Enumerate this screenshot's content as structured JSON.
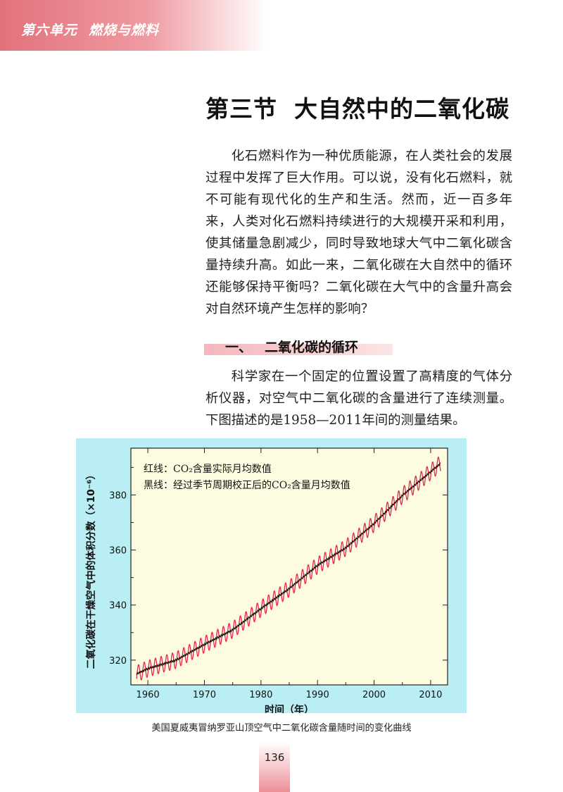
{
  "header": {
    "unit": "第六单元",
    "topic": "燃烧与燃料"
  },
  "section": {
    "number": "第三节",
    "title": "大自然中的二氧化碳"
  },
  "paragraphs": {
    "p1": "化石燃料作为一种优质能源，在人类社会的发展过程中发挥了巨大作用。可以说，没有化石燃料，就不可能有现代化的生产和生活。然而，近一百多年来，人类对化石燃料持续进行的大规模开采和利用，使其储量急剧减少，同时导致地球大气中二氧化碳含量持续升高。如此一来，二氧化碳在大自然中的循环还能够保持平衡吗？二氧化碳在大气中的含量升高会对自然环境产生怎样的影响？",
    "p2": "科学家在一个固定的位置设置了高精度的气体分析仪器，对空气中二氧化碳的含量进行了连续测量。下图描述的是1958—2011年间的测量结果。"
  },
  "subsection": {
    "number": "一、",
    "title": "二氧化碳的循环"
  },
  "chart_data": {
    "type": "line",
    "ylabel": "二氧化碳在干燥空气中的体积分数（×10⁻⁶）",
    "xlabel": "时间（年）",
    "xlim": [
      1957,
      2013
    ],
    "ylim": [
      311,
      397
    ],
    "xticks": [
      1960,
      1970,
      1980,
      1990,
      2000,
      2010
    ],
    "yticks": [
      320,
      340,
      360,
      380
    ],
    "grid": false,
    "background_color": "#fdfbe0",
    "legend": {
      "placement": "top-left",
      "lines": [
        "红线：CO₂含量实际月均数值",
        "黑线：经过季节周期校正后的CO₂含量月均数值"
      ]
    },
    "series": [
      {
        "name": "红线",
        "color": "#e8264a",
        "style": "seasonal",
        "amplitude": 3,
        "trend_x": [
          1958,
          1960,
          1965,
          1970,
          1975,
          1980,
          1985,
          1990,
          1995,
          2000,
          2005,
          2011.8
        ],
        "trend_y": [
          315,
          316.9,
          320,
          325.7,
          331,
          338.7,
          346,
          354.4,
          360.8,
          369.6,
          379.8,
          391.5
        ]
      },
      {
        "name": "黑线",
        "color": "#111111",
        "style": "trend",
        "x": [
          1958,
          1960,
          1965,
          1970,
          1975,
          1980,
          1985,
          1990,
          1995,
          2000,
          2005,
          2011.8
        ],
        "y": [
          315,
          316.9,
          320,
          325.7,
          331,
          338.7,
          346,
          354.4,
          360.8,
          369.6,
          379.8,
          391.5
        ]
      }
    ]
  },
  "caption": "美国夏威夷冒纳罗亚山顶空气中二氧化碳含量随时间的变化曲线",
  "page_number": "136"
}
